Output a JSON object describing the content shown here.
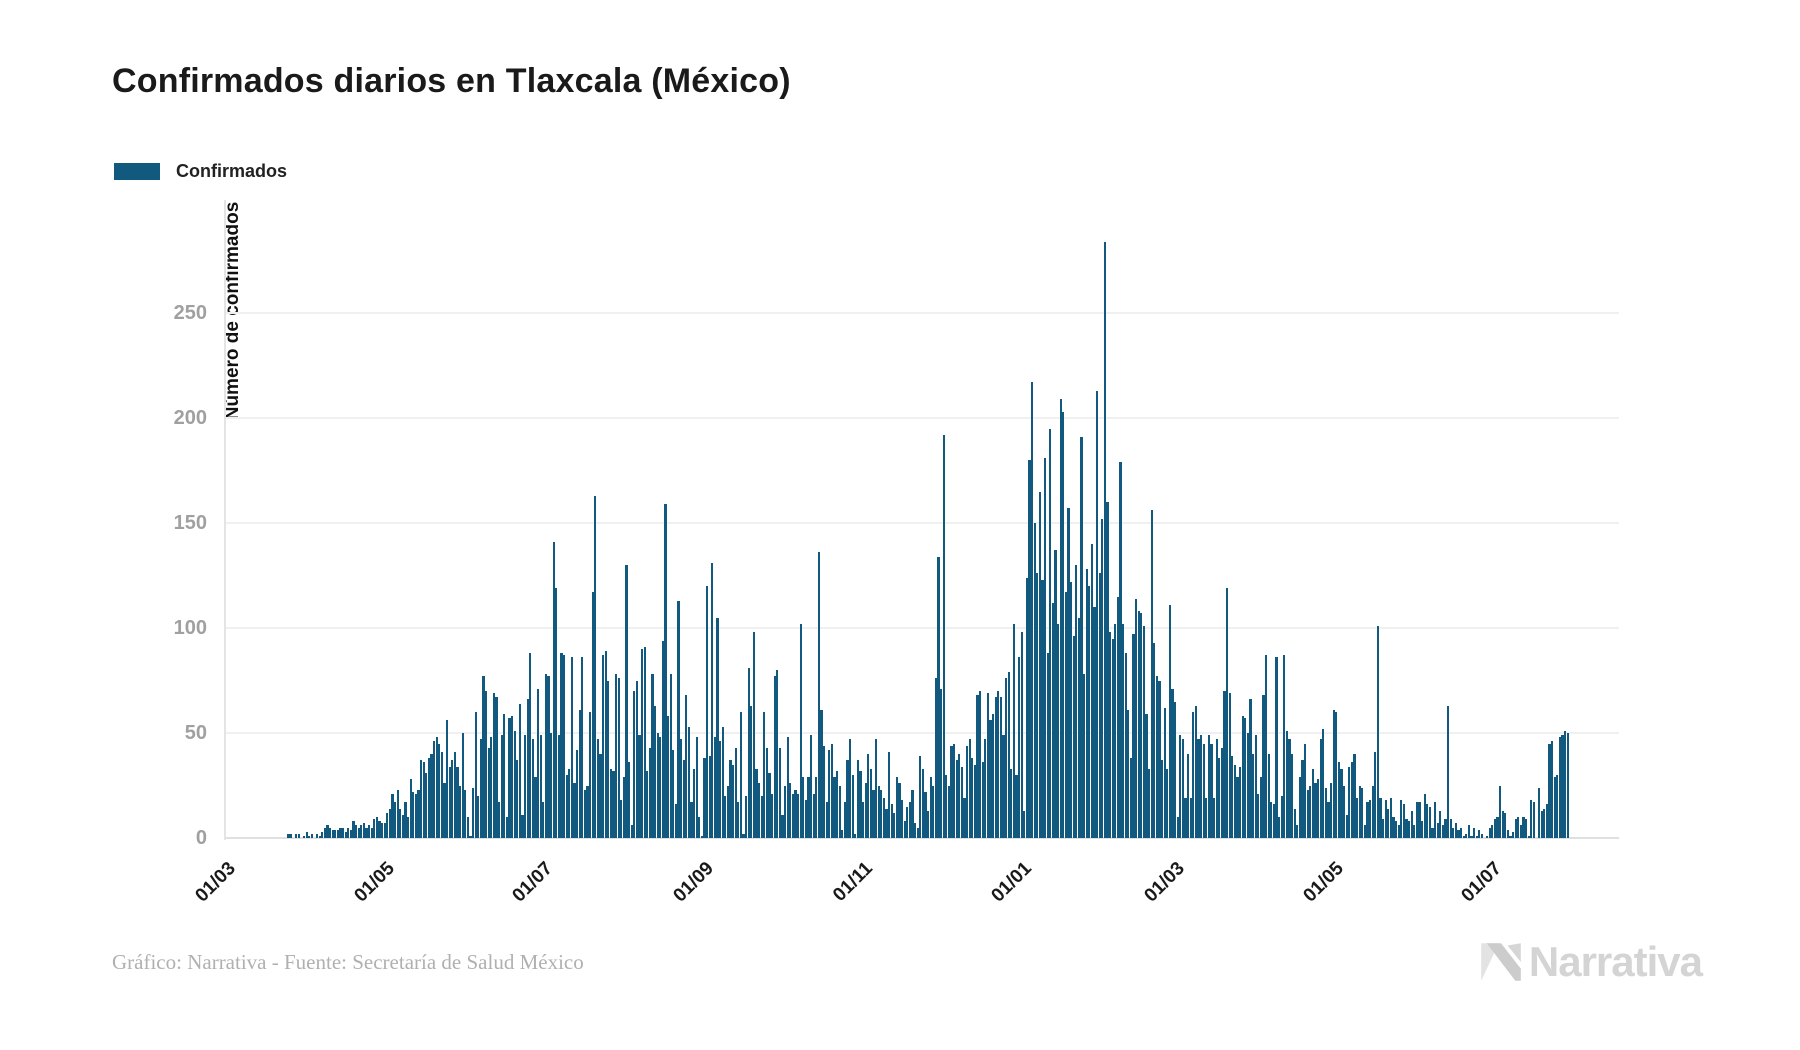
{
  "title": "Confirmados diarios en Tlaxcala (México)",
  "legend": {
    "label": "Confirmados",
    "color": "#11597f"
  },
  "footer": {
    "credit": "Gráfico: Narrativa - Fuente: Secretaría de Salud México"
  },
  "logo": {
    "text": "Narrativa"
  },
  "chart_data": {
    "type": "bar",
    "title": "Confirmados diarios en Tlaxcala (México)",
    "series_name": "Confirmados",
    "xlabel": "",
    "ylabel": "Número de confirmados",
    "bar_color": "#11597f",
    "ylim": [
      0,
      290
    ],
    "y_ticks": [
      0,
      50,
      100,
      150,
      200,
      250
    ],
    "grid": "horizontal",
    "legend_position": "top-left",
    "x_tick_labels": [
      "01/03",
      "01/05",
      "01/07",
      "01/09",
      "01/11",
      "01/01",
      "01/03",
      "01/05",
      "01/07"
    ],
    "x_tick_day_offsets": [
      0,
      61,
      122,
      184,
      245,
      306,
      365,
      426,
      487
    ],
    "x_axis_origin_date": "2020-03-01",
    "start_date": "2020-03-25",
    "start_day_offset": 24,
    "values": [
      2,
      2,
      0,
      2,
      2,
      0,
      1,
      3,
      1,
      2,
      0,
      2,
      1,
      3,
      5,
      6,
      5,
      4,
      4,
      4,
      5,
      5,
      3,
      5,
      4,
      8,
      6,
      5,
      6,
      7,
      5,
      6,
      5,
      9,
      10,
      8,
      7,
      7,
      12,
      14,
      21,
      17,
      23,
      14,
      11,
      17,
      10,
      28,
      22,
      21,
      23,
      37,
      36,
      31,
      38,
      40,
      46,
      48,
      45,
      41,
      26,
      56,
      34,
      37,
      41,
      34,
      25,
      50,
      23,
      10,
      1,
      24,
      60,
      20,
      47,
      77,
      70,
      43,
      48,
      69,
      67,
      17,
      49,
      59,
      10,
      57,
      58,
      51,
      37,
      64,
      11,
      49,
      66,
      88,
      47,
      29,
      71,
      49,
      17,
      78,
      77,
      50,
      141,
      119,
      49,
      88,
      87,
      30,
      33,
      86,
      26,
      42,
      61,
      86,
      23,
      25,
      60,
      117,
      163,
      47,
      40,
      87,
      89,
      75,
      33,
      32,
      78,
      76,
      18,
      29,
      130,
      36,
      6,
      70,
      75,
      49,
      90,
      91,
      32,
      43,
      78,
      63,
      50,
      48,
      94,
      159,
      58,
      78,
      42,
      16,
      113,
      47,
      37,
      68,
      53,
      17,
      33,
      48,
      10,
      1,
      38,
      120,
      39,
      131,
      48,
      105,
      46,
      53,
      20,
      25,
      37,
      35,
      43,
      17,
      60,
      2,
      20,
      81,
      63,
      98,
      33,
      26,
      20,
      60,
      43,
      31,
      21,
      77,
      80,
      43,
      11,
      25,
      48,
      26,
      21,
      23,
      21,
      102,
      29,
      18,
      29,
      49,
      21,
      29,
      136,
      61,
      44,
      17,
      42,
      45,
      29,
      32,
      25,
      4,
      17,
      37,
      47,
      30,
      2,
      37,
      32,
      17,
      26,
      40,
      33,
      23,
      47,
      25,
      23,
      19,
      14,
      41,
      16,
      12,
      29,
      26,
      18,
      8,
      15,
      17,
      23,
      7,
      5,
      39,
      33,
      22,
      13,
      29,
      25,
      76,
      134,
      71,
      192,
      30,
      25,
      44,
      45,
      37,
      40,
      34,
      19,
      44,
      47,
      38,
      35,
      68,
      70,
      36,
      47,
      69,
      56,
      59,
      67,
      70,
      67,
      49,
      76,
      79,
      33,
      102,
      30,
      86,
      98,
      13,
      124,
      180,
      217,
      150,
      126,
      165,
      123,
      181,
      88,
      195,
      112,
      137,
      102,
      209,
      203,
      117,
      157,
      122,
      96,
      130,
      105,
      191,
      78,
      128,
      120,
      140,
      110,
      213,
      126,
      152,
      284,
      160,
      98,
      95,
      102,
      115,
      179,
      102,
      88,
      61,
      38,
      97,
      114,
      108,
      107,
      101,
      59,
      33,
      156,
      93,
      77,
      75,
      37,
      62,
      33,
      111,
      71,
      65,
      10,
      49,
      47,
      19,
      40,
      19,
      60,
      63,
      47,
      49,
      45,
      19,
      49,
      45,
      19,
      47,
      38,
      43,
      70,
      119,
      69,
      39,
      35,
      29,
      34,
      58,
      57,
      50,
      66,
      40,
      49,
      21,
      29,
      68,
      87,
      40,
      17,
      16,
      86,
      10,
      20,
      87,
      51,
      47,
      40,
      14,
      6,
      29,
      37,
      45,
      23,
      25,
      33,
      26,
      28,
      47,
      52,
      24,
      17,
      26,
      61,
      60,
      36,
      33,
      25,
      11,
      34,
      36,
      40,
      19,
      25,
      24,
      6,
      17,
      18,
      25,
      41,
      101,
      19,
      9,
      18,
      14,
      19,
      10,
      8,
      6,
      18,
      16,
      9,
      8,
      13,
      6,
      17,
      17,
      8,
      21,
      16,
      15,
      5,
      17,
      7,
      13,
      6,
      9,
      63,
      9,
      5,
      7,
      4,
      5,
      1,
      2,
      6,
      1,
      5,
      1,
      4,
      2,
      0,
      1,
      5,
      6,
      9,
      10,
      25,
      13,
      12,
      4,
      1,
      3,
      9,
      10,
      6,
      10,
      9,
      1,
      18,
      17,
      0,
      24,
      13,
      14,
      16,
      45,
      46,
      29,
      30,
      48,
      49,
      51,
      50
    ]
  },
  "geometry_note": "peak value 284 on tallest bar; axis baseline value 0"
}
